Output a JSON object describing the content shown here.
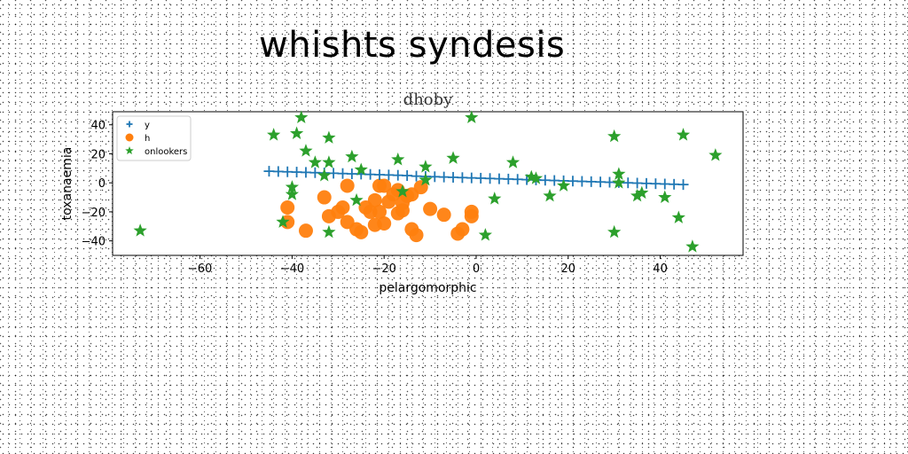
{
  "headline": "whishts syndesis",
  "chart_data": {
    "type": "scatter",
    "title": "dhoby",
    "xlabel": "pelargomorphic",
    "ylabel": "toxanaemia",
    "xlim": [
      -79,
      58
    ],
    "ylim": [
      -50,
      49
    ],
    "xticks": [
      -60,
      -40,
      -20,
      0,
      20,
      40
    ],
    "yticks": [
      -40,
      -20,
      0,
      20,
      40
    ],
    "grid": false,
    "legend_position": "top-left",
    "series": [
      {
        "name": "y",
        "marker": "plus",
        "color": "#1f77b4",
        "points": [
          [
            -45,
            8
          ],
          [
            -43,
            7.8
          ],
          [
            -41,
            7.6
          ],
          [
            -39,
            7.4
          ],
          [
            -37,
            7.2
          ],
          [
            -35,
            7
          ],
          [
            -33,
            6.8
          ],
          [
            -31,
            6.6
          ],
          [
            -29,
            6.4
          ],
          [
            -27,
            6.2
          ],
          [
            -25,
            6
          ],
          [
            -23,
            5.8
          ],
          [
            -21,
            5.6
          ],
          [
            -19,
            5.4
          ],
          [
            -17,
            5.2
          ],
          [
            -15,
            5
          ],
          [
            -13,
            4.6
          ],
          [
            -11,
            4.4
          ],
          [
            -9,
            4.2
          ],
          [
            -7,
            4
          ],
          [
            -5,
            3.8
          ],
          [
            -3,
            3.6
          ],
          [
            -1,
            3.4
          ],
          [
            1,
            3.2
          ],
          [
            3,
            3
          ],
          [
            5,
            2.8
          ],
          [
            7,
            2.6
          ],
          [
            9,
            2.4
          ],
          [
            11,
            2.2
          ],
          [
            13,
            2
          ],
          [
            15,
            1.8
          ],
          [
            17,
            1.6
          ],
          [
            19,
            1.4
          ],
          [
            21,
            1.2
          ],
          [
            23,
            1
          ],
          [
            25,
            0.8
          ],
          [
            27,
            0.6
          ],
          [
            29,
            0.4
          ],
          [
            31,
            0.2
          ],
          [
            33,
            0
          ],
          [
            35,
            -0.2
          ],
          [
            37,
            -0.4
          ],
          [
            39,
            -0.6
          ],
          [
            41,
            -0.8
          ],
          [
            43,
            -1
          ],
          [
            45,
            -1.2
          ]
        ]
      },
      {
        "name": "h",
        "marker": "circle",
        "color": "#ff7f0e",
        "points": [
          [
            -41,
            -17
          ],
          [
            -41,
            -27
          ],
          [
            -37,
            -33
          ],
          [
            -33,
            -10
          ],
          [
            -32,
            -23
          ],
          [
            -30,
            -20
          ],
          [
            -29,
            -17
          ],
          [
            -28,
            -27
          ],
          [
            -28,
            -2
          ],
          [
            -26,
            -32
          ],
          [
            -25,
            -34
          ],
          [
            -24,
            -17
          ],
          [
            -23,
            -20
          ],
          [
            -22,
            -12
          ],
          [
            -22,
            -29
          ],
          [
            -21,
            -2
          ],
          [
            -21,
            -20
          ],
          [
            -20,
            -28
          ],
          [
            -19,
            -13
          ],
          [
            -18,
            -8
          ],
          [
            -17,
            -5
          ],
          [
            -17,
            -21
          ],
          [
            -16,
            -14
          ],
          [
            -15,
            -9
          ],
          [
            -14,
            -8
          ],
          [
            -14,
            -32
          ],
          [
            -13,
            -36
          ],
          [
            -12,
            -3
          ],
          [
            -10,
            -18
          ],
          [
            -7,
            -22
          ],
          [
            -4,
            -35
          ],
          [
            -3,
            -32
          ],
          [
            -1,
            -20
          ],
          [
            -1,
            -23
          ],
          [
            -20,
            -2
          ],
          [
            -16,
            -19
          ]
        ]
      },
      {
        "name": "onlookers",
        "marker": "star",
        "color": "#2ca02c",
        "points": [
          [
            -73,
            -33
          ],
          [
            -44,
            33
          ],
          [
            -42,
            -27
          ],
          [
            -40,
            -3
          ],
          [
            -40,
            -8
          ],
          [
            -39,
            34
          ],
          [
            -38,
            45
          ],
          [
            -37,
            22
          ],
          [
            -35,
            14
          ],
          [
            -33,
            5
          ],
          [
            -32,
            31
          ],
          [
            -32,
            -34
          ],
          [
            -32,
            14
          ],
          [
            -27,
            18
          ],
          [
            -26,
            -12
          ],
          [
            -25,
            9
          ],
          [
            -17,
            16
          ],
          [
            -16,
            -6
          ],
          [
            -11,
            11
          ],
          [
            -11,
            2
          ],
          [
            -5,
            17
          ],
          [
            -1,
            45
          ],
          [
            2,
            -36
          ],
          [
            4,
            -11
          ],
          [
            8,
            14
          ],
          [
            12,
            4
          ],
          [
            13,
            3
          ],
          [
            16,
            -9
          ],
          [
            19,
            -2
          ],
          [
            30,
            32
          ],
          [
            30,
            -34
          ],
          [
            31,
            0
          ],
          [
            31,
            6
          ],
          [
            35,
            -9
          ],
          [
            36,
            -7
          ],
          [
            41,
            -10
          ],
          [
            44,
            -24
          ],
          [
            45,
            33
          ],
          [
            47,
            -44
          ],
          [
            52,
            19
          ]
        ]
      }
    ]
  }
}
